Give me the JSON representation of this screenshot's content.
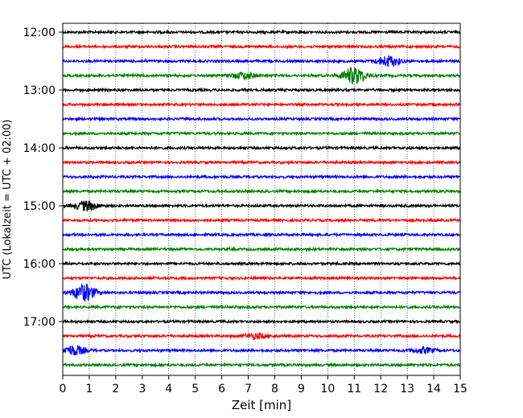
{
  "chart_data": {
    "type": "line",
    "title": "",
    "xlabel": "Zeit  [min]",
    "ylabel": "UTC (Lokalzeit = UTC + 02:00)",
    "xlim": [
      0,
      15
    ],
    "x_ticks": [
      "0",
      "1",
      "2",
      "3",
      "4",
      "5",
      "6",
      "7",
      "8",
      "9",
      "10",
      "11",
      "12",
      "13",
      "14",
      "15"
    ],
    "y_ticks": [
      "12:00",
      "13:00",
      "14:00",
      "15:00",
      "16:00",
      "17:00"
    ],
    "grid": "vertical dotted at each minute",
    "line_colors": [
      "#000000",
      "#ff0000",
      "#0000ff",
      "#008000"
    ],
    "series": [
      {
        "start": "12:00",
        "events": []
      },
      {
        "start": "12:15",
        "events": []
      },
      {
        "start": "12:30",
        "events": [
          {
            "t": 12.3,
            "amp": 1.0
          }
        ]
      },
      {
        "start": "12:45",
        "events": [
          {
            "t": 6.8,
            "amp": 0.6
          },
          {
            "t": 11.0,
            "amp": 1.6
          }
        ]
      },
      {
        "start": "13:00",
        "events": []
      },
      {
        "start": "13:15",
        "events": []
      },
      {
        "start": "13:30",
        "events": []
      },
      {
        "start": "13:45",
        "events": []
      },
      {
        "start": "14:00",
        "events": []
      },
      {
        "start": "14:15",
        "events": []
      },
      {
        "start": "14:30",
        "events": []
      },
      {
        "start": "14:45",
        "events": []
      },
      {
        "start": "15:00",
        "events": [
          {
            "t": 0.9,
            "amp": 0.9
          }
        ]
      },
      {
        "start": "15:15",
        "events": []
      },
      {
        "start": "15:30",
        "events": []
      },
      {
        "start": "15:45",
        "events": []
      },
      {
        "start": "16:00",
        "events": []
      },
      {
        "start": "16:15",
        "events": []
      },
      {
        "start": "16:30",
        "events": [
          {
            "t": 0.8,
            "amp": 1.6
          }
        ]
      },
      {
        "start": "16:45",
        "events": []
      },
      {
        "start": "17:00",
        "events": []
      },
      {
        "start": "17:15",
        "events": [
          {
            "t": 7.3,
            "amp": 0.5
          }
        ]
      },
      {
        "start": "17:30",
        "events": [
          {
            "t": 0.4,
            "amp": 0.9
          },
          {
            "t": 13.6,
            "amp": 0.5
          }
        ]
      },
      {
        "start": "17:45",
        "events": []
      }
    ]
  }
}
